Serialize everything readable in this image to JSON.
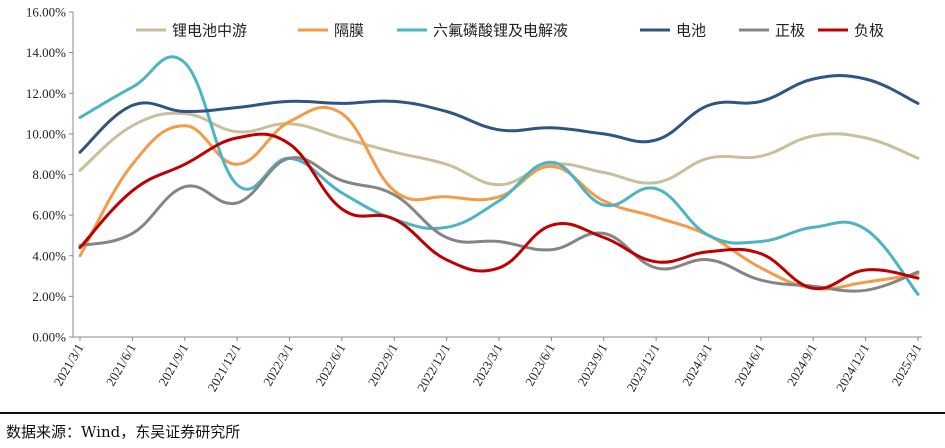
{
  "chart_data": {
    "type": "line",
    "title": "",
    "xlabel": "",
    "ylabel": "",
    "ylim": [
      0,
      16
    ],
    "yticks": [
      0,
      2,
      4,
      6,
      8,
      10,
      12,
      14,
      16
    ],
    "ytick_format": "%.2f%",
    "grid": false,
    "legend_position": "top",
    "x": [
      "2021/3/1",
      "2021/6/1",
      "2021/9/1",
      "2021/12/1",
      "2022/3/1",
      "2022/6/1",
      "2022/9/1",
      "2022/12/1",
      "2023/3/1",
      "2023/6/1",
      "2023/9/1",
      "2023/12/1",
      "2024/3/1",
      "2024/6/1",
      "2024/9/1",
      "2024/12/1",
      "2025/3/1"
    ],
    "series": [
      {
        "name": "锂电池中游",
        "color": "#c9bf9c",
        "values": [
          8.2,
          10.4,
          11.0,
          10.1,
          10.5,
          9.8,
          9.1,
          8.5,
          7.5,
          8.5,
          8.1,
          7.6,
          8.8,
          8.9,
          9.9,
          9.8,
          8.8
        ]
      },
      {
        "name": "隔膜",
        "color": "#f39b48",
        "values": [
          4.0,
          8.5,
          10.4,
          8.5,
          10.6,
          11.0,
          7.2,
          6.9,
          6.9,
          8.4,
          6.7,
          5.9,
          5.0,
          3.4,
          2.4,
          2.7,
          3.1
        ]
      },
      {
        "name": "六氟磷酸锂及电解液",
        "color": "#4cb4c5",
        "values": [
          10.8,
          12.3,
          13.5,
          7.5,
          8.8,
          7.1,
          5.8,
          5.4,
          6.7,
          8.6,
          6.5,
          7.3,
          5.0,
          4.7,
          5.4,
          5.3,
          2.1
        ]
      },
      {
        "name": "电池",
        "color": "#2f5582",
        "values": [
          9.1,
          11.4,
          11.1,
          11.3,
          11.6,
          11.5,
          11.6,
          11.1,
          10.2,
          10.3,
          10.0,
          9.7,
          11.4,
          11.6,
          12.7,
          12.7,
          11.5
        ]
      },
      {
        "name": "正极",
        "color": "#858585",
        "values": [
          4.5,
          5.1,
          7.4,
          6.6,
          8.8,
          7.7,
          7.0,
          4.9,
          4.7,
          4.3,
          5.1,
          3.4,
          3.8,
          2.8,
          2.5,
          2.3,
          3.2
        ]
      },
      {
        "name": "负极",
        "color": "#c00000",
        "values": [
          4.4,
          7.2,
          8.5,
          9.8,
          9.5,
          6.3,
          5.8,
          3.8,
          3.4,
          5.5,
          4.9,
          3.7,
          4.2,
          4.1,
          2.4,
          3.3,
          2.9
        ]
      }
    ]
  },
  "source": "数据来源：Wind，东吴证券研究所"
}
